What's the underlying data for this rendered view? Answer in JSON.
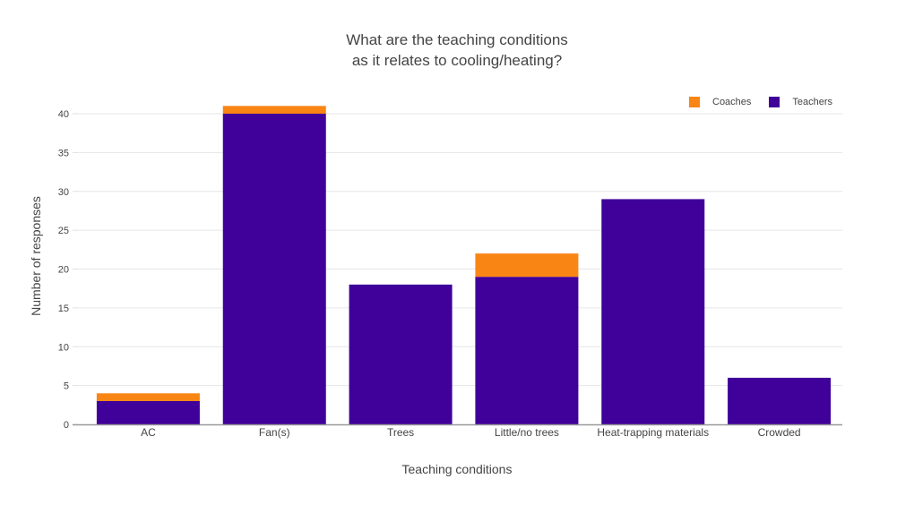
{
  "title_lines": [
    "What are the teaching conditions",
    "as it relates to cooling/heating?"
  ],
  "legend": [
    {
      "label": "Coaches",
      "color": "#f98515"
    },
    {
      "label": "Teachers",
      "color": "#3f0199"
    }
  ],
  "axes": {
    "xlabel": "Teaching conditions",
    "ylabel": "Number of responses"
  },
  "chart_data": {
    "type": "bar",
    "stacked": true,
    "title": "What are the teaching conditions as it relates to cooling/heating?",
    "xlabel": "Teaching conditions",
    "ylabel": "Number of responses",
    "categories": [
      "AC",
      "Fan(s)",
      "Trees",
      "Little/no trees",
      "Heat-trapping materials",
      "Crowded"
    ],
    "series": [
      {
        "name": "Teachers",
        "color": "#3f0199",
        "values": [
          3,
          40,
          18,
          19,
          29,
          6
        ]
      },
      {
        "name": "Coaches",
        "color": "#f98515",
        "values": [
          1,
          1,
          0,
          3,
          0,
          0
        ]
      }
    ],
    "yticks": [
      0,
      5,
      10,
      15,
      20,
      25,
      30,
      35,
      40
    ],
    "ylim": [
      0,
      41
    ],
    "grid": true,
    "legend_position": "top-right"
  }
}
